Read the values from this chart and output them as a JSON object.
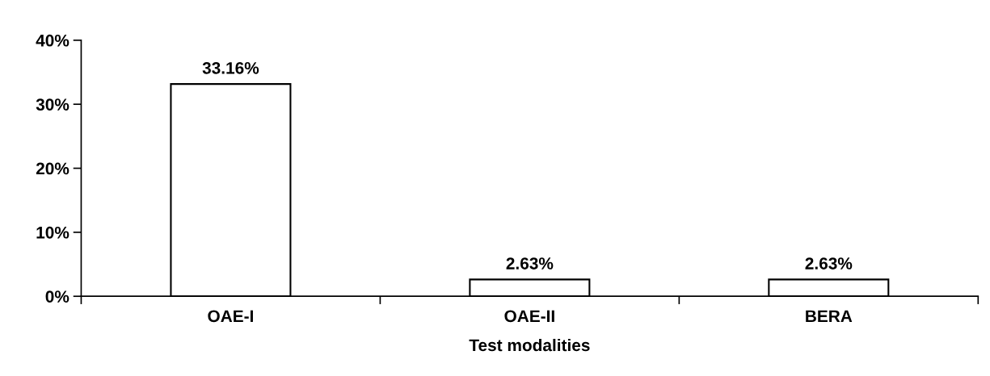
{
  "chart_data": {
    "type": "bar",
    "xlabel": "Test modalities",
    "categories": [
      "OAE-I",
      "OAE-II",
      "BERA"
    ],
    "values": [
      33.16,
      2.63,
      2.63
    ],
    "value_labels": [
      "33.16%",
      "2.63%",
      "2.63%"
    ],
    "color": "#ffffff",
    "ylim": [
      0,
      40
    ],
    "yticks": [
      {
        "value": 0,
        "label": "0%"
      },
      {
        "value": 10,
        "label": "10%"
      },
      {
        "value": 20,
        "label": "20%"
      },
      {
        "value": 30,
        "label": "30%"
      },
      {
        "value": 40,
        "label": "40%"
      }
    ],
    "grid": false,
    "legend": false
  }
}
